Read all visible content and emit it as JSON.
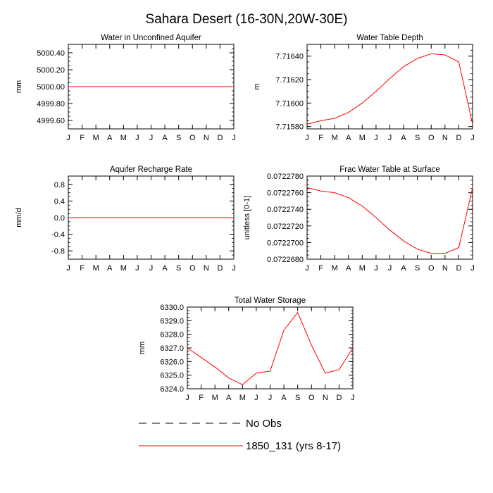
{
  "figure": {
    "title": "Sahara Desert (16-30N,20W-30E)"
  },
  "legend": [
    {
      "label": "No Obs",
      "color": "#000000",
      "style": "dashed"
    },
    {
      "label": "1850_131 (yrs 8-17)",
      "color": "#ff0000",
      "style": "solid"
    }
  ],
  "chart_data": [
    {
      "type": "line",
      "title": "Water in Unconfined Aquifer",
      "ylabel": "mm",
      "categories": [
        "J",
        "F",
        "M",
        "A",
        "M",
        "J",
        "J",
        "A",
        "S",
        "O",
        "N",
        "D",
        "J"
      ],
      "ylim": [
        4999.5,
        5000.5
      ],
      "yticks": [
        4999.6,
        4999.8,
        5000.0,
        5000.2,
        5000.4
      ],
      "ytick_labels": [
        "4999.60",
        "4999.80",
        "5000.00",
        "5000.20",
        "5000.40"
      ],
      "series": [
        {
          "name": "1850_131 (yrs 8-17)",
          "color": "#ff0000",
          "values": [
            5000,
            5000,
            5000,
            5000,
            5000,
            5000,
            5000,
            5000,
            5000,
            5000,
            5000,
            5000,
            5000
          ]
        }
      ]
    },
    {
      "type": "line",
      "title": "Water Table Depth",
      "ylabel": "m",
      "categories": [
        "J",
        "F",
        "M",
        "A",
        "M",
        "J",
        "J",
        "A",
        "S",
        "O",
        "N",
        "D",
        "J"
      ],
      "ylim": [
        7.71578,
        7.7165
      ],
      "yticks": [
        7.7158,
        7.716,
        7.7162,
        7.7164
      ],
      "ytick_labels": [
        "7.71580",
        "7.71600",
        "7.71620",
        "7.71640"
      ],
      "series": [
        {
          "name": "1850_131 (yrs 8-17)",
          "color": "#ff0000",
          "values": [
            7.71582,
            7.71585,
            7.71587,
            7.71592,
            7.716,
            7.7161,
            7.71621,
            7.71631,
            7.71638,
            7.71642,
            7.71641,
            7.71635,
            7.71582
          ]
        }
      ]
    },
    {
      "type": "line",
      "title": "Aquifer Recharge Rate",
      "ylabel": "mm/d",
      "categories": [
        "J",
        "F",
        "M",
        "A",
        "M",
        "J",
        "J",
        "A",
        "S",
        "O",
        "N",
        "D",
        "J"
      ],
      "ylim": [
        -1.0,
        1.0
      ],
      "yticks": [
        -0.8,
        -0.4,
        0.0,
        0.4,
        0.8
      ],
      "ytick_labels": [
        "-0.8",
        "-0.4",
        "0.0",
        "0.4",
        "0.8"
      ],
      "series": [
        {
          "name": "1850_131 (yrs 8-17)",
          "color": "#ff0000",
          "values": [
            0,
            0,
            0,
            0,
            0,
            0,
            0,
            0,
            0,
            0,
            0,
            0,
            0
          ]
        }
      ]
    },
    {
      "type": "line",
      "title": "Frac Water Table at Surface",
      "ylabel": "unitless [0-1]",
      "categories": [
        "J",
        "F",
        "M",
        "A",
        "M",
        "J",
        "J",
        "A",
        "S",
        "O",
        "N",
        "D",
        "J"
      ],
      "ylim": [
        0.072268,
        0.072278
      ],
      "yticks": [
        0.072268,
        0.07227,
        0.072272,
        0.072274,
        0.072276,
        0.072278
      ],
      "ytick_labels": [
        "0.0722680",
        "0.0722700",
        "0.0722720",
        "0.0722740",
        "0.0722760",
        "0.0722780"
      ],
      "series": [
        {
          "name": "1850_131 (yrs 8-17)",
          "color": "#ff0000",
          "values": [
            0.0722766,
            0.0722762,
            0.072276,
            0.0722754,
            0.0722744,
            0.072273,
            0.0722715,
            0.0722702,
            0.0722692,
            0.0722687,
            0.0722687,
            0.0722694,
            0.0722766
          ]
        }
      ]
    },
    {
      "type": "line",
      "title": "Total Water Storage",
      "ylabel": "mm",
      "categories": [
        "J",
        "F",
        "M",
        "A",
        "M",
        "J",
        "J",
        "A",
        "S",
        "O",
        "N",
        "D",
        "J"
      ],
      "ylim": [
        6324.0,
        6330.0
      ],
      "yticks": [
        6324,
        6325,
        6326,
        6327,
        6328,
        6329,
        6330
      ],
      "ytick_labels": [
        "6324.0",
        "6325.0",
        "6326.0",
        "6327.0",
        "6328.0",
        "6329.0",
        "6330.0"
      ],
      "series": [
        {
          "name": "1850_131 (yrs 8-17)",
          "color": "#ff0000",
          "values": [
            6327.0,
            6326.3,
            6325.6,
            6324.8,
            6324.3,
            6325.15,
            6325.3,
            6328.3,
            6329.6,
            6327.2,
            6325.15,
            6325.4,
            6327.0
          ]
        }
      ]
    }
  ]
}
